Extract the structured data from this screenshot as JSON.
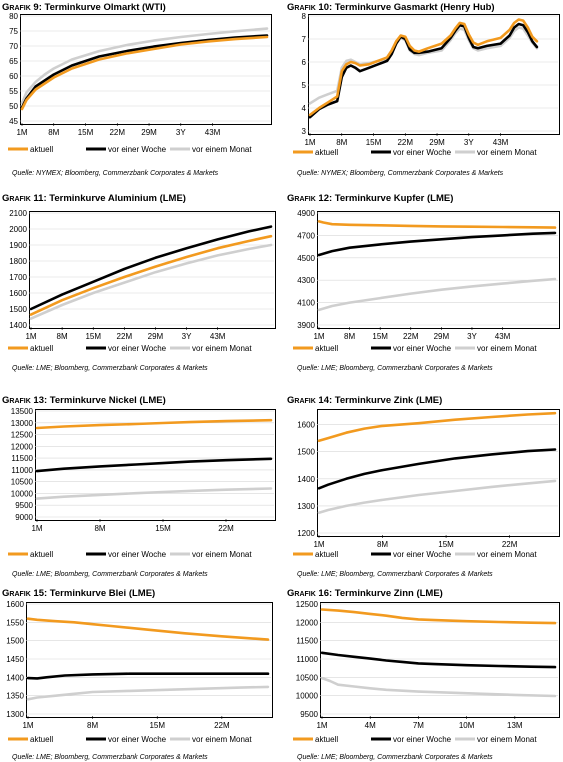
{
  "colors": {
    "aktuell": "#F29A1F",
    "woche": "#000000",
    "monat": "#CFCFCF",
    "grid": "#D8D8D8"
  },
  "legend": [
    "aktuell",
    "vor einer Woche",
    "vor einem Monat"
  ],
  "chart_data": [
    {
      "id": "g9",
      "type": "line",
      "title_prefix": "Grafik 9:",
      "title": "Terminkurve Olmarkt (WTI)",
      "source": "Quelle: NYMEX; Bloomberg, Commerzbank Corporates & Markets",
      "ylim": [
        45,
        80
      ],
      "yticks": [
        45,
        50,
        55,
        60,
        65,
        70,
        75,
        80
      ],
      "xlim": [
        1,
        55
      ],
      "xticks": [
        1,
        8,
        15,
        22,
        29,
        36,
        43
      ],
      "xticklabels": [
        "1M",
        "8M",
        "15M",
        "22M",
        "29M",
        "3Y",
        "43M"
      ],
      "grid": true,
      "legend_position": "bottom",
      "series": [
        {
          "name": "aktuell",
          "x": [
            1,
            2,
            4,
            6,
            8,
            12,
            18,
            24,
            30,
            36,
            42,
            48,
            55
          ],
          "y": [
            49,
            52,
            55.5,
            57.5,
            59.5,
            62.5,
            65.5,
            67.5,
            69,
            70.5,
            71.5,
            72.3,
            73
          ]
        },
        {
          "name": "vor einer Woche",
          "x": [
            1,
            2,
            4,
            6,
            8,
            12,
            18,
            24,
            30,
            36,
            42,
            48,
            55
          ],
          "y": [
            49.5,
            52.5,
            56.5,
            58.5,
            60.5,
            63.5,
            66.5,
            68.3,
            69.8,
            71,
            72,
            72.8,
            73.5
          ]
        },
        {
          "name": "vor einem Monat",
          "x": [
            1,
            2,
            4,
            6,
            8,
            12,
            18,
            24,
            30,
            36,
            42,
            48,
            55
          ],
          "y": [
            51,
            54.5,
            58,
            60.5,
            62.5,
            65.5,
            68.3,
            70.3,
            71.8,
            73,
            74,
            74.9,
            75.8
          ]
        }
      ]
    },
    {
      "id": "g10",
      "type": "line",
      "title_prefix": "Grafik 10:",
      "title": "Terminkurve Gasmarkt (Henry Hub)",
      "source": "Quelle: NYMEX; Bloomberg, Commerzbank Corporates & Markets",
      "ylim": [
        3.0,
        8.0
      ],
      "yticks": [
        3.0,
        4.0,
        5.0,
        6.0,
        7.0,
        8.0
      ],
      "xlim": [
        1,
        55
      ],
      "xticks": [
        1,
        8,
        15,
        22,
        29,
        36,
        43
      ],
      "xticklabels": [
        "1M",
        "8M",
        "15M",
        "22M",
        "29M",
        "3Y",
        "43M"
      ],
      "grid": true,
      "legend_position": "bottom",
      "series": [
        {
          "name": "aktuell",
          "x": [
            1,
            3,
            5,
            7,
            8,
            9,
            10,
            11,
            12,
            14,
            16,
            18,
            19,
            20,
            21,
            22,
            23,
            24,
            25,
            27,
            30,
            32,
            33,
            34,
            35,
            36,
            37,
            38,
            40,
            43,
            45,
            46,
            47,
            48,
            49,
            50,
            51
          ],
          "y": [
            3.7,
            4.0,
            4.25,
            4.5,
            5.6,
            5.9,
            6.0,
            5.95,
            5.85,
            5.9,
            6.05,
            6.2,
            6.5,
            6.9,
            7.15,
            7.1,
            6.7,
            6.5,
            6.45,
            6.6,
            6.8,
            7.15,
            7.45,
            7.7,
            7.65,
            7.2,
            6.85,
            6.75,
            6.9,
            7.05,
            7.4,
            7.7,
            7.85,
            7.8,
            7.5,
            7.1,
            6.9
          ]
        },
        {
          "name": "vor einer Woche",
          "x": [
            1,
            3,
            5,
            7,
            8,
            9,
            10,
            11,
            12,
            14,
            16,
            18,
            19,
            20,
            21,
            22,
            23,
            24,
            25,
            27,
            30,
            32,
            33,
            34,
            35,
            36,
            37,
            38,
            40,
            43,
            45,
            46,
            47,
            48,
            49,
            50,
            51
          ],
          "y": [
            3.6,
            3.95,
            4.15,
            4.3,
            5.35,
            5.75,
            5.85,
            5.75,
            5.6,
            5.75,
            5.9,
            6.05,
            6.35,
            6.8,
            7.1,
            7.0,
            6.55,
            6.4,
            6.4,
            6.45,
            6.6,
            7.05,
            7.35,
            7.6,
            7.55,
            7.05,
            6.65,
            6.6,
            6.7,
            6.8,
            7.15,
            7.5,
            7.65,
            7.6,
            7.3,
            6.9,
            6.65
          ]
        },
        {
          "name": "vor einem Monat",
          "x": [
            1,
            3,
            5,
            7,
            8,
            9,
            10,
            11,
            12,
            14,
            16,
            18,
            19,
            20,
            21,
            22,
            23,
            24,
            25,
            27,
            30,
            32,
            33,
            34,
            35,
            36,
            37,
            38,
            40,
            43,
            45,
            46,
            47,
            48,
            49,
            50,
            51
          ],
          "y": [
            4.2,
            4.45,
            4.6,
            4.75,
            5.75,
            6.05,
            6.1,
            6.0,
            5.9,
            5.95,
            6.05,
            6.15,
            6.4,
            6.8,
            7.05,
            6.95,
            6.5,
            6.35,
            6.3,
            6.4,
            6.5,
            6.95,
            7.25,
            7.45,
            7.4,
            6.95,
            6.6,
            6.5,
            6.6,
            6.7,
            7.05,
            7.35,
            7.5,
            7.45,
            7.15,
            6.85,
            6.6
          ]
        }
      ]
    },
    {
      "id": "g11",
      "type": "line",
      "title_prefix": "Grafik 11:",
      "title": "Terminkurve Aluminium (LME)",
      "source": "Quelle: LME; Bloomberg, Commerzbank Corporates & Markets",
      "ylim": [
        1400,
        2100
      ],
      "yticks": [
        1400,
        1500,
        1600,
        1700,
        1800,
        1900,
        2000,
        2100
      ],
      "xlim": [
        1,
        55
      ],
      "xticks": [
        1,
        8,
        15,
        22,
        29,
        36,
        43
      ],
      "xticklabels": [
        "1M",
        "8M",
        "15M",
        "22M",
        "29M",
        "3Y",
        "43M"
      ],
      "grid": true,
      "legend_position": "bottom",
      "series": [
        {
          "name": "aktuell",
          "x": [
            1,
            8,
            15,
            22,
            29,
            36,
            43,
            50,
            55
          ],
          "y": [
            1465,
            1555,
            1630,
            1700,
            1765,
            1825,
            1880,
            1925,
            1955
          ]
        },
        {
          "name": "vor einer Woche",
          "x": [
            1,
            8,
            15,
            22,
            29,
            36,
            43,
            50,
            55
          ],
          "y": [
            1500,
            1590,
            1670,
            1750,
            1820,
            1880,
            1935,
            1985,
            2015
          ]
        },
        {
          "name": "vor einem Monat",
          "x": [
            1,
            8,
            15,
            22,
            29,
            36,
            43,
            50,
            55
          ],
          "y": [
            1440,
            1525,
            1600,
            1665,
            1730,
            1785,
            1835,
            1875,
            1900
          ]
        }
      ]
    },
    {
      "id": "g12",
      "type": "line",
      "title_prefix": "Grafik 12:",
      "title": "Terminkurve Kupfer (LME)",
      "source": "Quelle: LME; Bloomberg, Commerzbank Corporates & Markets",
      "ylim": [
        3900,
        4900
      ],
      "yticks": [
        3900,
        4100,
        4300,
        4500,
        4700,
        4900
      ],
      "xlim": [
        1,
        55
      ],
      "xticks": [
        1,
        8,
        15,
        22,
        29,
        36,
        43
      ],
      "xticklabels": [
        "1M",
        "8M",
        "15M",
        "22M",
        "29M",
        "3Y",
        "43M"
      ],
      "grid": true,
      "legend_position": "bottom",
      "series": [
        {
          "name": "aktuell",
          "x": [
            1,
            2,
            4,
            8,
            15,
            22,
            29,
            36,
            43,
            50,
            55
          ],
          "y": [
            4825,
            4815,
            4800,
            4795,
            4790,
            4785,
            4780,
            4778,
            4775,
            4772,
            4770
          ]
        },
        {
          "name": "vor einer Woche",
          "x": [
            1,
            4,
            8,
            15,
            22,
            29,
            36,
            43,
            50,
            55
          ],
          "y": [
            4525,
            4560,
            4590,
            4620,
            4645,
            4665,
            4685,
            4700,
            4715,
            4722
          ]
        },
        {
          "name": "vor einem Monat",
          "x": [
            1,
            4,
            8,
            15,
            22,
            29,
            36,
            43,
            50,
            55
          ],
          "y": [
            4035,
            4070,
            4100,
            4140,
            4180,
            4215,
            4245,
            4270,
            4295,
            4310
          ]
        }
      ]
    },
    {
      "id": "g13",
      "type": "line",
      "title_prefix": "Grafik 13:",
      "title": "Terminkurve Nickel (LME)",
      "source": "Quelle: LME; Bloomberg, Commerzbank Corporates & Markets",
      "ylim": [
        9000,
        13500
      ],
      "yticks": [
        9000,
        9500,
        10000,
        10500,
        11000,
        11500,
        12000,
        12500,
        13000,
        13500
      ],
      "xlim": [
        1,
        27
      ],
      "xticks": [
        1,
        8,
        15,
        22
      ],
      "xticklabels": [
        "1M",
        "8M",
        "15M",
        "22M"
      ],
      "grid": true,
      "legend_position": "bottom",
      "series": [
        {
          "name": "aktuell",
          "x": [
            1,
            4,
            8,
            12,
            15,
            18,
            22,
            27
          ],
          "y": [
            12780,
            12840,
            12900,
            12950,
            12990,
            13030,
            13070,
            13110
          ]
        },
        {
          "name": "vor einer Woche",
          "x": [
            1,
            4,
            8,
            12,
            15,
            18,
            22,
            27
          ],
          "y": [
            10950,
            11050,
            11150,
            11230,
            11290,
            11350,
            11410,
            11470
          ]
        },
        {
          "name": "vor einem Monat",
          "x": [
            1,
            4,
            8,
            12,
            15,
            18,
            22,
            27
          ],
          "y": [
            9780,
            9860,
            9940,
            10010,
            10060,
            10110,
            10160,
            10210
          ]
        }
      ]
    },
    {
      "id": "g14",
      "type": "line",
      "title_prefix": "Grafik 14:",
      "title": "Terminkurve Zink (LME)",
      "source": "Quelle: LME; Bloomberg, Commerzbank Corporates & Markets",
      "ylim": [
        1200,
        1650
      ],
      "yticks": [
        1200,
        1300,
        1400,
        1500,
        1600
      ],
      "xlim": [
        1,
        27
      ],
      "xticks": [
        1,
        8,
        15,
        22
      ],
      "xticklabels": [
        "1M",
        "8M",
        "15M",
        "22M"
      ],
      "grid": true,
      "legend_position": "bottom",
      "series": [
        {
          "name": "aktuell",
          "x": [
            1,
            2,
            4,
            6,
            8,
            12,
            16,
            20,
            24,
            27
          ],
          "y": [
            1540,
            1550,
            1570,
            1585,
            1595,
            1605,
            1618,
            1628,
            1637,
            1642
          ]
        },
        {
          "name": "vor einer Woche",
          "x": [
            1,
            2,
            4,
            6,
            8,
            12,
            16,
            20,
            24,
            27
          ],
          "y": [
            1365,
            1378,
            1400,
            1418,
            1432,
            1455,
            1475,
            1490,
            1502,
            1508
          ]
        },
        {
          "name": "vor einem Monat",
          "x": [
            1,
            2,
            4,
            6,
            8,
            12,
            16,
            20,
            24,
            27
          ],
          "y": [
            1275,
            1285,
            1300,
            1312,
            1322,
            1340,
            1355,
            1370,
            1383,
            1392
          ]
        }
      ]
    },
    {
      "id": "g15",
      "type": "line",
      "title_prefix": "Grafik 15:",
      "title": "Terminkurve Blei (LME)",
      "source": "Quelle: LME; Bloomberg, Commerzbank Corporates & Markets",
      "ylim": [
        1300,
        1600
      ],
      "yticks": [
        1300,
        1350,
        1400,
        1450,
        1500,
        1550,
        1600
      ],
      "xlim": [
        1,
        27
      ],
      "xticks": [
        1,
        8,
        15,
        22
      ],
      "xticklabels": [
        "1M",
        "8M",
        "15M",
        "22M"
      ],
      "grid": true,
      "legend_position": "bottom",
      "series": [
        {
          "name": "aktuell",
          "x": [
            1,
            2,
            4,
            6,
            8,
            10,
            14,
            18,
            22,
            27
          ],
          "y": [
            1560,
            1557,
            1553,
            1550,
            1545,
            1540,
            1530,
            1520,
            1512,
            1503
          ]
        },
        {
          "name": "vor einer Woche",
          "x": [
            1,
            2,
            3,
            5,
            8,
            12,
            18,
            22,
            27
          ],
          "y": [
            1398,
            1397,
            1400,
            1405,
            1408,
            1410,
            1410,
            1410,
            1410
          ]
        },
        {
          "name": "vor einem Monat",
          "x": [
            1,
            2,
            4,
            6,
            8,
            12,
            16,
            20,
            24,
            27
          ],
          "y": [
            1340,
            1345,
            1350,
            1355,
            1360,
            1363,
            1366,
            1369,
            1372,
            1374
          ]
        }
      ]
    },
    {
      "id": "g16",
      "type": "line",
      "title_prefix": "Grafik 16:",
      "title": "Terminkurve Zinn (LME)",
      "source": "Quelle: LME; Bloomberg, Commerzbank Corporates & Markets",
      "ylim": [
        9500,
        12500
      ],
      "yticks": [
        9500,
        10000,
        10500,
        11000,
        11500,
        12000,
        12500
      ],
      "xlim": [
        1,
        15.5
      ],
      "xticks": [
        1,
        4,
        7,
        10,
        13
      ],
      "xticklabels": [
        "1M",
        "4M",
        "7M",
        "10M",
        "13M"
      ],
      "grid": true,
      "legend_position": "bottom",
      "series": [
        {
          "name": "aktuell",
          "x": [
            1,
            2,
            3,
            4,
            5,
            6,
            7,
            8,
            10,
            12,
            14,
            15.5
          ],
          "y": [
            12350,
            12320,
            12280,
            12230,
            12180,
            12120,
            12080,
            12060,
            12030,
            12010,
            11990,
            11980
          ]
        },
        {
          "name": "vor einer Woche",
          "x": [
            1,
            2,
            3,
            4,
            5,
            6,
            7,
            8,
            10,
            12,
            14,
            15.5
          ],
          "y": [
            11170,
            11110,
            11060,
            11010,
            10960,
            10920,
            10880,
            10860,
            10830,
            10810,
            10790,
            10780
          ]
        },
        {
          "name": "vor einem Monat",
          "x": [
            1,
            1.5,
            2,
            3,
            4,
            5,
            7,
            9,
            11,
            13,
            15.5
          ],
          "y": [
            10480,
            10400,
            10300,
            10250,
            10200,
            10160,
            10110,
            10080,
            10050,
            10020,
            9990
          ]
        }
      ]
    }
  ]
}
